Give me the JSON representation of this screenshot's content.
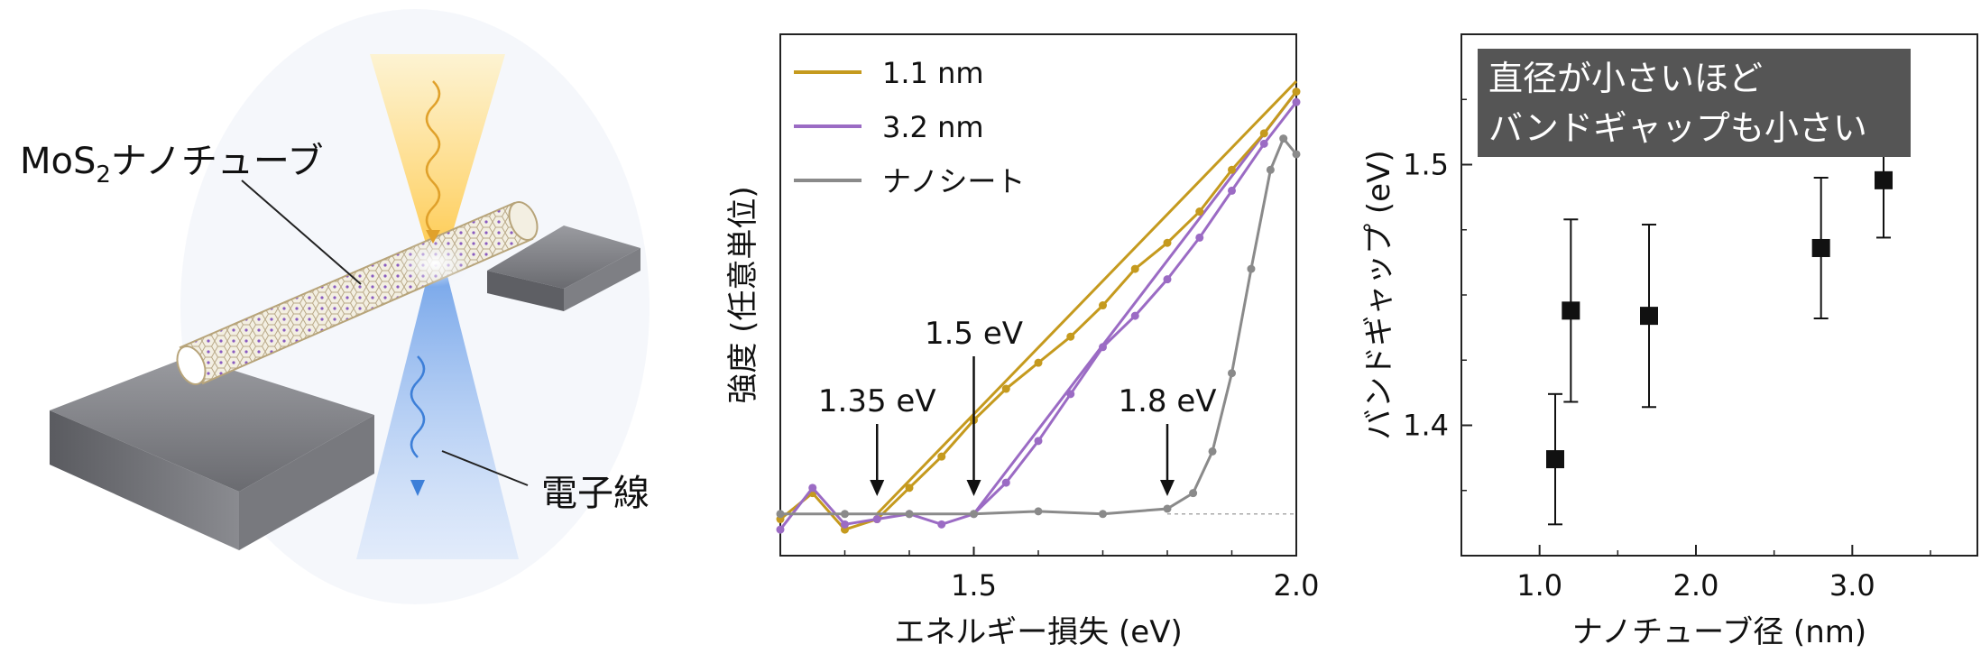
{
  "illustration": {
    "tube_label_main": "MoS",
    "tube_label_sub": "2",
    "tube_label_rest": "ナノチューブ",
    "beam_label": "電子線"
  },
  "chart_data": [
    {
      "type": "line",
      "xlabel": "エネルギー損失 (eV)",
      "ylabel": "強度 (任意単位)",
      "xlim": [
        1.2,
        2.0
      ],
      "ylim": [
        0,
        1.0
      ],
      "x_ticks": [
        "1.5",
        "2.0"
      ],
      "x_tick_values": [
        1.5,
        2.0
      ],
      "legend_position": "top-left",
      "series": [
        {
          "name": "1.1 nm",
          "color": "#c59a1e",
          "x": [
            1.2,
            1.25,
            1.3,
            1.35,
            1.4,
            1.45,
            1.5,
            1.55,
            1.6,
            1.65,
            1.7,
            1.75,
            1.8,
            1.85,
            1.9,
            1.95,
            2.0
          ],
          "y": [
            0.07,
            0.12,
            0.05,
            0.07,
            0.13,
            0.19,
            0.26,
            0.32,
            0.37,
            0.42,
            0.48,
            0.55,
            0.6,
            0.66,
            0.74,
            0.81,
            0.89
          ]
        },
        {
          "name": "3.2 nm",
          "color": "#9b6bc4",
          "x": [
            1.2,
            1.25,
            1.3,
            1.35,
            1.4,
            1.45,
            1.5,
            1.55,
            1.6,
            1.65,
            1.7,
            1.75,
            1.8,
            1.85,
            1.9,
            1.95,
            2.0
          ],
          "y": [
            0.05,
            0.13,
            0.06,
            0.07,
            0.08,
            0.06,
            0.08,
            0.14,
            0.22,
            0.31,
            0.4,
            0.46,
            0.53,
            0.61,
            0.7,
            0.79,
            0.87
          ]
        },
        {
          "name": "ナノシート",
          "color": "#8a8a8a",
          "x": [
            1.2,
            1.3,
            1.4,
            1.5,
            1.6,
            1.7,
            1.8,
            1.84,
            1.87,
            1.9,
            1.93,
            1.96,
            1.98,
            2.0
          ],
          "y": [
            0.08,
            0.08,
            0.08,
            0.08,
            0.085,
            0.08,
            0.09,
            0.12,
            0.2,
            0.35,
            0.55,
            0.74,
            0.8,
            0.77
          ]
        }
      ],
      "fit_lines": [
        {
          "color": "#c59a1e",
          "x": [
            1.35,
            2.0
          ],
          "y": [
            0.08,
            0.91
          ]
        },
        {
          "color": "#9b6bc4",
          "x": [
            1.5,
            2.0
          ],
          "y": [
            0.08,
            0.89
          ]
        }
      ],
      "annotations": [
        {
          "text": "1.35 eV",
          "x": 1.35
        },
        {
          "text": "1.5 eV",
          "x": 1.5
        },
        {
          "text": "1.8 eV",
          "x": 1.8
        }
      ]
    },
    {
      "type": "scatter",
      "xlabel": "ナノチューブ径 (nm)",
      "ylabel": "バンドギャップ (eV)",
      "xlim": [
        0.5,
        3.8
      ],
      "ylim": [
        1.35,
        1.55
      ],
      "x_ticks": [
        "1.0",
        "2.0",
        "3.0"
      ],
      "x_tick_values": [
        1.0,
        2.0,
        3.0
      ],
      "y_ticks": [
        "1.4",
        "1.5"
      ],
      "y_tick_values": [
        1.4,
        1.5
      ],
      "annotation": {
        "line1": "直径が小さいほど",
        "line2": "バンドギャップも小さい"
      },
      "points": [
        {
          "x": 1.1,
          "y": 1.387,
          "err": 0.025
        },
        {
          "x": 1.2,
          "y": 1.444,
          "err": 0.035
        },
        {
          "x": 1.7,
          "y": 1.442,
          "err": 0.035
        },
        {
          "x": 2.8,
          "y": 1.468,
          "err": 0.027
        },
        {
          "x": 3.2,
          "y": 1.494,
          "err": 0.022
        }
      ]
    }
  ]
}
